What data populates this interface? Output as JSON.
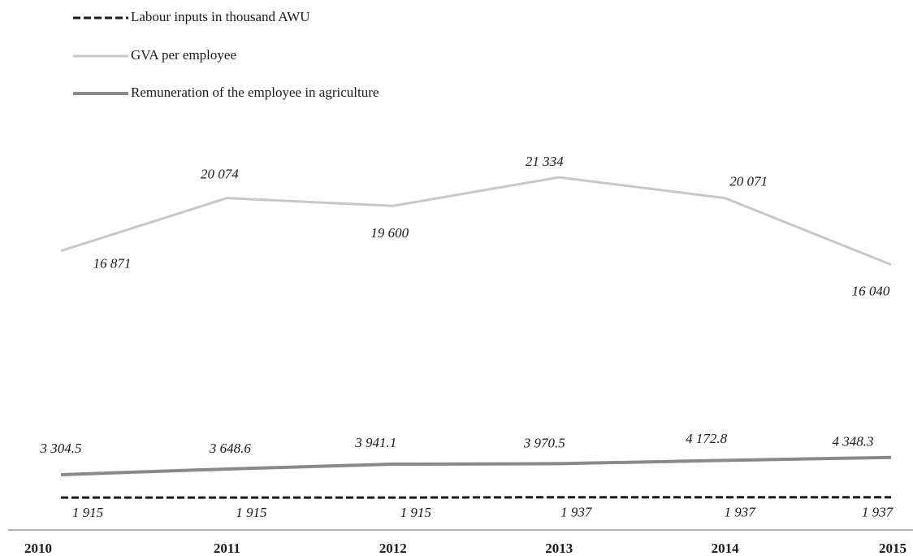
{
  "chart_data": {
    "type": "line",
    "categories": [
      "2010",
      "2011",
      "2012",
      "2013",
      "2014",
      "2015"
    ],
    "series": [
      {
        "name": "Labour inputs in thousand AWU",
        "color": "#1a1a1a",
        "dash": true,
        "values": [
          1915,
          1915,
          1915,
          1937,
          1937,
          1937
        ],
        "value_labels": [
          "1 915",
          "1 915",
          "1 915",
          "1 937",
          "1 937",
          "1 937"
        ]
      },
      {
        "name": "GVA per employee",
        "color": "#c8c8c8",
        "dash": false,
        "values": [
          16871,
          20074,
          19600,
          21334,
          20071,
          16040
        ],
        "value_labels": [
          "16 871",
          "20 074",
          "19 600",
          "21 334",
          "20 071",
          "16 040"
        ]
      },
      {
        "name": "Remuneration of the employee in agriculture",
        "color": "#8a8a8a",
        "dash": false,
        "values": [
          3304.5,
          3648.6,
          3941.1,
          3970.5,
          4172.8,
          4348.3
        ],
        "value_labels": [
          "3 304.5",
          "3 648.6",
          "3 941.1",
          "3 970.5",
          "4 172.8",
          "4 348.3"
        ]
      }
    ],
    "ylim": [
      0,
      24000
    ],
    "legend": "top-left"
  }
}
